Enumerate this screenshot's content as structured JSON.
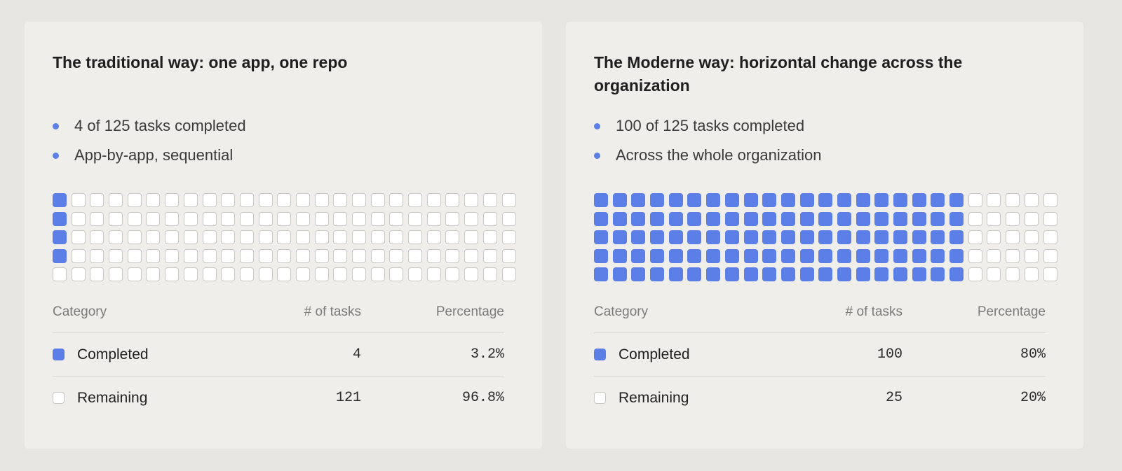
{
  "colors": {
    "completed": "#5b7fe6",
    "remaining": "#ffffff",
    "page_background": "#e7e6e2",
    "card_background": "#f0eeea"
  },
  "table_headers": {
    "category": "Category",
    "tasks": "# of tasks",
    "percentage": "Percentage"
  },
  "cards": [
    {
      "title": "The traditional way: one app, one repo",
      "bullets": [
        "4 of 125 tasks completed",
        "App-by-app, sequential"
      ],
      "rows": [
        {
          "category": "Completed",
          "tasks": "4",
          "percentage": "3.2%"
        },
        {
          "category": "Remaining",
          "tasks": "121",
          "percentage": "96.8%"
        }
      ]
    },
    {
      "title": "The Moderne way: horizontal change across the organization",
      "bullets": [
        "100 of 125 tasks completed",
        "Across the whole organization"
      ],
      "rows": [
        {
          "category": "Completed",
          "tasks": "100",
          "percentage": "80%"
        },
        {
          "category": "Remaining",
          "tasks": "25",
          "percentage": "20%"
        }
      ]
    }
  ],
  "chart_data": [
    {
      "type": "waffle",
      "title": "The traditional way: one app, one repo",
      "rows": 5,
      "columns": 25,
      "total": 125,
      "fill_order": "column-major",
      "categories": [
        "Completed",
        "Remaining"
      ],
      "values": [
        4,
        121
      ],
      "percentages": [
        3.2,
        96.8
      ]
    },
    {
      "type": "waffle",
      "title": "The Moderne way: horizontal change across the organization",
      "rows": 5,
      "columns": 25,
      "total": 125,
      "fill_order": "column-major",
      "categories": [
        "Completed",
        "Remaining"
      ],
      "values": [
        100,
        25
      ],
      "percentages": [
        80,
        20
      ]
    }
  ]
}
